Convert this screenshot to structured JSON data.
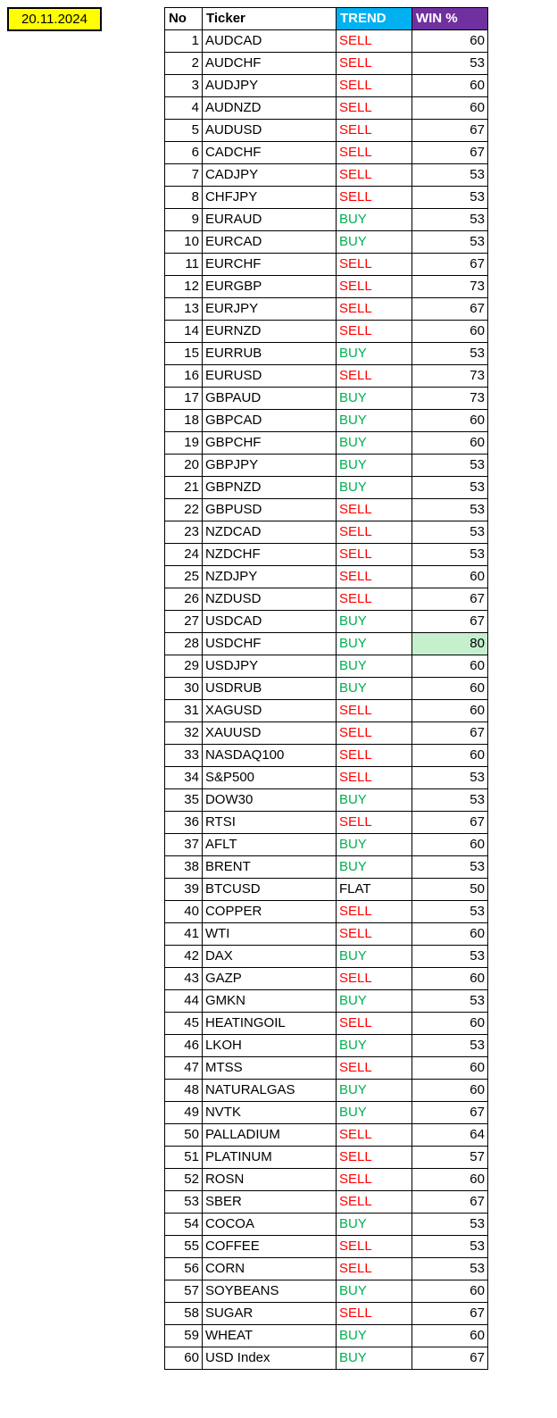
{
  "date": "20.11.2024",
  "columns": [
    "No",
    "Ticker",
    "TREND",
    "WIN %"
  ],
  "header_styles": {
    "trend_bg": "#00b0f0",
    "trend_color": "#ffffff",
    "win_bg": "#7030a0",
    "win_color": "#ffffff"
  },
  "trend_colors": {
    "SELL": "#ff0000",
    "BUY": "#00b050",
    "FLAT": "#000000"
  },
  "highlight_bg": "#c6efce",
  "rows": [
    {
      "no": 1,
      "ticker": "AUDCAD",
      "trend": "SELL",
      "win": 60
    },
    {
      "no": 2,
      "ticker": "AUDCHF",
      "trend": "SELL",
      "win": 53
    },
    {
      "no": 3,
      "ticker": "AUDJPY",
      "trend": "SELL",
      "win": 60
    },
    {
      "no": 4,
      "ticker": "AUDNZD",
      "trend": "SELL",
      "win": 60
    },
    {
      "no": 5,
      "ticker": "AUDUSD",
      "trend": "SELL",
      "win": 67
    },
    {
      "no": 6,
      "ticker": "CADCHF",
      "trend": "SELL",
      "win": 67
    },
    {
      "no": 7,
      "ticker": "CADJPY",
      "trend": "SELL",
      "win": 53
    },
    {
      "no": 8,
      "ticker": "CHFJPY",
      "trend": "SELL",
      "win": 53
    },
    {
      "no": 9,
      "ticker": "EURAUD",
      "trend": "BUY",
      "win": 53
    },
    {
      "no": 10,
      "ticker": "EURCAD",
      "trend": "BUY",
      "win": 53
    },
    {
      "no": 11,
      "ticker": "EURCHF",
      "trend": "SELL",
      "win": 67
    },
    {
      "no": 12,
      "ticker": "EURGBP",
      "trend": "SELL",
      "win": 73
    },
    {
      "no": 13,
      "ticker": "EURJPY",
      "trend": "SELL",
      "win": 67
    },
    {
      "no": 14,
      "ticker": "EURNZD",
      "trend": "SELL",
      "win": 60
    },
    {
      "no": 15,
      "ticker": "EURRUB",
      "trend": "BUY",
      "win": 53
    },
    {
      "no": 16,
      "ticker": "EURUSD",
      "trend": "SELL",
      "win": 73
    },
    {
      "no": 17,
      "ticker": "GBPAUD",
      "trend": "BUY",
      "win": 73
    },
    {
      "no": 18,
      "ticker": "GBPCAD",
      "trend": "BUY",
      "win": 60
    },
    {
      "no": 19,
      "ticker": "GBPCHF",
      "trend": "BUY",
      "win": 60
    },
    {
      "no": 20,
      "ticker": "GBPJPY",
      "trend": "BUY",
      "win": 53
    },
    {
      "no": 21,
      "ticker": "GBPNZD",
      "trend": "BUY",
      "win": 53
    },
    {
      "no": 22,
      "ticker": "GBPUSD",
      "trend": "SELL",
      "win": 53
    },
    {
      "no": 23,
      "ticker": "NZDCAD",
      "trend": "SELL",
      "win": 53
    },
    {
      "no": 24,
      "ticker": "NZDCHF",
      "trend": "SELL",
      "win": 53
    },
    {
      "no": 25,
      "ticker": "NZDJPY",
      "trend": "SELL",
      "win": 60
    },
    {
      "no": 26,
      "ticker": "NZDUSD",
      "trend": "SELL",
      "win": 67
    },
    {
      "no": 27,
      "ticker": "USDCAD",
      "trend": "BUY",
      "win": 67
    },
    {
      "no": 28,
      "ticker": "USDCHF",
      "trend": "BUY",
      "win": 80,
      "highlight": true
    },
    {
      "no": 29,
      "ticker": "USDJPY",
      "trend": "BUY",
      "win": 60
    },
    {
      "no": 30,
      "ticker": "USDRUB",
      "trend": "BUY",
      "win": 60
    },
    {
      "no": 31,
      "ticker": "XAGUSD",
      "trend": "SELL",
      "win": 60
    },
    {
      "no": 32,
      "ticker": "XAUUSD",
      "trend": "SELL",
      "win": 67
    },
    {
      "no": 33,
      "ticker": "NASDAQ100",
      "trend": "SELL",
      "win": 60
    },
    {
      "no": 34,
      "ticker": "S&P500",
      "trend": "SELL",
      "win": 53
    },
    {
      "no": 35,
      "ticker": "DOW30",
      "trend": "BUY",
      "win": 53
    },
    {
      "no": 36,
      "ticker": "RTSI",
      "trend": "SELL",
      "win": 67
    },
    {
      "no": 37,
      "ticker": "AFLT",
      "trend": "BUY",
      "win": 60
    },
    {
      "no": 38,
      "ticker": "BRENT",
      "trend": "BUY",
      "win": 53
    },
    {
      "no": 39,
      "ticker": "BTCUSD",
      "trend": "FLAT",
      "win": 50
    },
    {
      "no": 40,
      "ticker": "COPPER",
      "trend": "SELL",
      "win": 53
    },
    {
      "no": 41,
      "ticker": "WTI",
      "trend": "SELL",
      "win": 60
    },
    {
      "no": 42,
      "ticker": "DAX",
      "trend": "BUY",
      "win": 53
    },
    {
      "no": 43,
      "ticker": "GAZP",
      "trend": "SELL",
      "win": 60
    },
    {
      "no": 44,
      "ticker": "GMKN",
      "trend": "BUY",
      "win": 53
    },
    {
      "no": 45,
      "ticker": "HEATINGOIL",
      "trend": "SELL",
      "win": 60
    },
    {
      "no": 46,
      "ticker": "LKOH",
      "trend": "BUY",
      "win": 53
    },
    {
      "no": 47,
      "ticker": "MTSS",
      "trend": "SELL",
      "win": 60
    },
    {
      "no": 48,
      "ticker": "NATURALGAS",
      "trend": "BUY",
      "win": 60
    },
    {
      "no": 49,
      "ticker": "NVTK",
      "trend": "BUY",
      "win": 67
    },
    {
      "no": 50,
      "ticker": "PALLADIUM",
      "trend": "SELL",
      "win": 64
    },
    {
      "no": 51,
      "ticker": "PLATINUM",
      "trend": "SELL",
      "win": 57
    },
    {
      "no": 52,
      "ticker": "ROSN",
      "trend": "SELL",
      "win": 60
    },
    {
      "no": 53,
      "ticker": "SBER",
      "trend": "SELL",
      "win": 67
    },
    {
      "no": 54,
      "ticker": "COCOA",
      "trend": "BUY",
      "win": 53
    },
    {
      "no": 55,
      "ticker": "COFFEE",
      "trend": "SELL",
      "win": 53
    },
    {
      "no": 56,
      "ticker": "CORN",
      "trend": "SELL",
      "win": 53
    },
    {
      "no": 57,
      "ticker": "SOYBEANS",
      "trend": "BUY",
      "win": 60
    },
    {
      "no": 58,
      "ticker": "SUGAR",
      "trend": "SELL",
      "win": 67
    },
    {
      "no": 59,
      "ticker": "WHEAT",
      "trend": "BUY",
      "win": 60
    },
    {
      "no": 60,
      "ticker": "USD Index",
      "trend": "BUY",
      "win": 67
    }
  ]
}
